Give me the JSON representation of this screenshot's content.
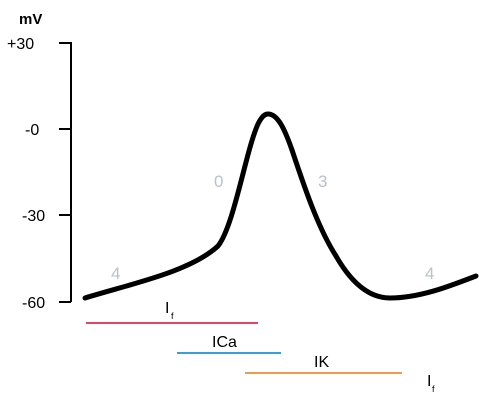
{
  "y_axis": {
    "unit": "mV",
    "ticks": [
      {
        "label": "+30",
        "value": 30
      },
      {
        "label": "-0",
        "value": 0
      },
      {
        "label": "-30",
        "value": -30
      },
      {
        "label": "-60",
        "value": -60
      }
    ]
  },
  "phases": {
    "phase_4_left": "4",
    "phase_0": "0",
    "phase_3": "3",
    "phase_4_right": "4"
  },
  "currents": {
    "if_top": {
      "label": "I",
      "sub": "f",
      "color": "#e0446a"
    },
    "ica": {
      "label": "ICa",
      "color": "#3a9fd6"
    },
    "ik": {
      "label": "IK",
      "color": "#f29a4a"
    },
    "if_bottom": {
      "label": "I",
      "sub": "f"
    }
  },
  "colors": {
    "trace": "#000000",
    "phase_labels": "#b8c2ca"
  }
}
